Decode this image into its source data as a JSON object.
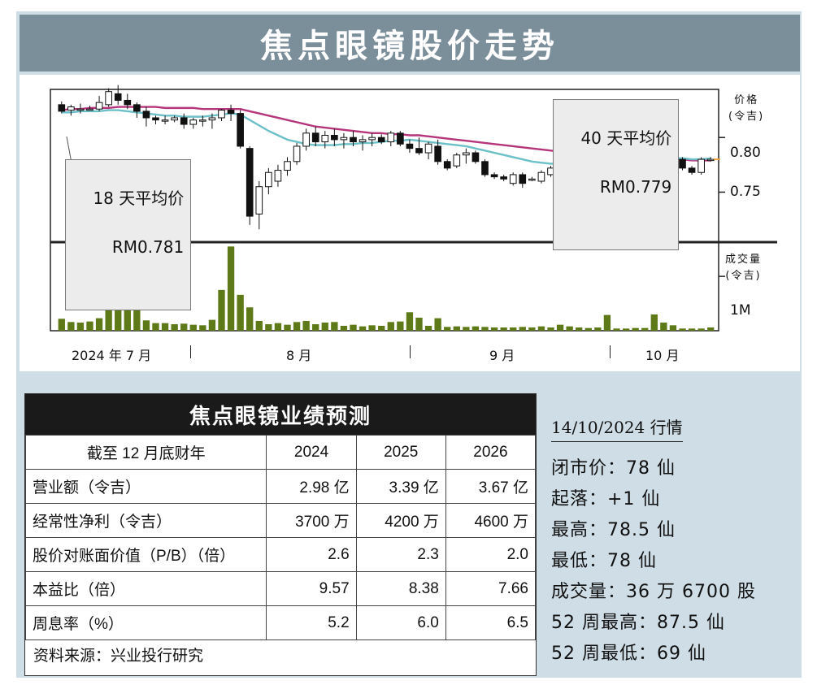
{
  "title": "焦点眼镜股价走势",
  "chart": {
    "annotations": {
      "ma18": {
        "line1": "18 天平均价",
        "line2": "RM0.781"
      },
      "ma40": {
        "line1": "40 天平均价",
        "line2": "RM0.779"
      }
    },
    "price_axis_label": [
      "价格",
      "(令吉)"
    ],
    "volume_axis_label": [
      "成交量",
      "(令吉)"
    ],
    "price_ticks": [
      "0.80",
      "0.75"
    ],
    "volume_ticks": [
      "1M"
    ],
    "months": [
      "2024 年 7 月",
      "8 月",
      "9 月",
      "10 月"
    ]
  },
  "chart_data": {
    "type": "candlestick",
    "price_ylim": [
      0.705,
      0.844
    ],
    "volume_ylim": [
      0,
      1600000
    ],
    "colors": {
      "up": "#ffffff",
      "down": "#111111",
      "ma18": "#6cc0c8",
      "ma40": "#b6357a",
      "volume": "#5e7a18",
      "last": "#f0a040"
    },
    "candles": [
      {
        "o": 0.83,
        "h": 0.833,
        "l": 0.822,
        "c": 0.824,
        "v": 220000
      },
      {
        "o": 0.825,
        "h": 0.83,
        "l": 0.82,
        "c": 0.828,
        "v": 160000
      },
      {
        "o": 0.826,
        "h": 0.831,
        "l": 0.822,
        "c": 0.826,
        "v": 150000
      },
      {
        "o": 0.826,
        "h": 0.829,
        "l": 0.825,
        "c": 0.826,
        "v": 170000
      },
      {
        "o": 0.826,
        "h": 0.838,
        "l": 0.824,
        "c": 0.832,
        "v": 230000
      },
      {
        "o": 0.83,
        "h": 0.845,
        "l": 0.828,
        "c": 0.842,
        "v": 1050000
      },
      {
        "o": 0.84,
        "h": 0.848,
        "l": 0.83,
        "c": 0.834,
        "v": 570000
      },
      {
        "o": 0.834,
        "h": 0.84,
        "l": 0.826,
        "c": 0.83,
        "v": 380000
      },
      {
        "o": 0.83,
        "h": 0.832,
        "l": 0.818,
        "c": 0.824,
        "v": 610000
      },
      {
        "o": 0.824,
        "h": 0.828,
        "l": 0.81,
        "c": 0.818,
        "v": 190000
      },
      {
        "o": 0.818,
        "h": 0.82,
        "l": 0.812,
        "c": 0.816,
        "v": 140000
      },
      {
        "o": 0.816,
        "h": 0.82,
        "l": 0.812,
        "c": 0.816,
        "v": 140000
      },
      {
        "o": 0.816,
        "h": 0.82,
        "l": 0.814,
        "c": 0.818,
        "v": 120000
      },
      {
        "o": 0.818,
        "h": 0.822,
        "l": 0.808,
        "c": 0.812,
        "v": 130000
      },
      {
        "o": 0.812,
        "h": 0.818,
        "l": 0.808,
        "c": 0.816,
        "v": 110000
      },
      {
        "o": 0.816,
        "h": 0.82,
        "l": 0.81,
        "c": 0.816,
        "v": 100000
      },
      {
        "o": 0.816,
        "h": 0.822,
        "l": 0.808,
        "c": 0.818,
        "v": 200000
      },
      {
        "o": 0.818,
        "h": 0.826,
        "l": 0.815,
        "c": 0.825,
        "v": 750000
      },
      {
        "o": 0.825,
        "h": 0.83,
        "l": 0.815,
        "c": 0.822,
        "v": 1550000
      },
      {
        "o": 0.822,
        "h": 0.825,
        "l": 0.79,
        "c": 0.792,
        "v": 660000
      },
      {
        "o": 0.79,
        "h": 0.792,
        "l": 0.72,
        "c": 0.728,
        "v": 430000
      },
      {
        "o": 0.73,
        "h": 0.76,
        "l": 0.716,
        "c": 0.755,
        "v": 180000
      },
      {
        "o": 0.755,
        "h": 0.772,
        "l": 0.748,
        "c": 0.768,
        "v": 120000
      },
      {
        "o": 0.76,
        "h": 0.775,
        "l": 0.755,
        "c": 0.77,
        "v": 140000
      },
      {
        "o": 0.77,
        "h": 0.782,
        "l": 0.765,
        "c": 0.778,
        "v": 110000
      },
      {
        "o": 0.778,
        "h": 0.795,
        "l": 0.775,
        "c": 0.792,
        "v": 160000
      },
      {
        "o": 0.792,
        "h": 0.808,
        "l": 0.788,
        "c": 0.804,
        "v": 180000
      },
      {
        "o": 0.804,
        "h": 0.81,
        "l": 0.792,
        "c": 0.796,
        "v": 120000
      },
      {
        "o": 0.796,
        "h": 0.806,
        "l": 0.79,
        "c": 0.802,
        "v": 150000
      },
      {
        "o": 0.802,
        "h": 0.808,
        "l": 0.792,
        "c": 0.798,
        "v": 160000
      },
      {
        "o": 0.798,
        "h": 0.804,
        "l": 0.79,
        "c": 0.8,
        "v": 90000
      },
      {
        "o": 0.8,
        "h": 0.806,
        "l": 0.792,
        "c": 0.796,
        "v": 110000
      },
      {
        "o": 0.796,
        "h": 0.802,
        "l": 0.788,
        "c": 0.798,
        "v": 80000
      },
      {
        "o": 0.798,
        "h": 0.804,
        "l": 0.792,
        "c": 0.8,
        "v": 100000
      },
      {
        "o": 0.8,
        "h": 0.803,
        "l": 0.794,
        "c": 0.796,
        "v": 90000
      },
      {
        "o": 0.796,
        "h": 0.806,
        "l": 0.792,
        "c": 0.804,
        "v": 160000
      },
      {
        "o": 0.804,
        "h": 0.806,
        "l": 0.792,
        "c": 0.794,
        "v": 170000
      },
      {
        "o": 0.794,
        "h": 0.798,
        "l": 0.786,
        "c": 0.79,
        "v": 340000
      },
      {
        "o": 0.79,
        "h": 0.8,
        "l": 0.784,
        "c": 0.786,
        "v": 240000
      },
      {
        "o": 0.786,
        "h": 0.796,
        "l": 0.78,
        "c": 0.794,
        "v": 90000
      },
      {
        "o": 0.792,
        "h": 0.798,
        "l": 0.775,
        "c": 0.778,
        "v": 230000
      },
      {
        "o": 0.778,
        "h": 0.78,
        "l": 0.77,
        "c": 0.772,
        "v": 70000
      },
      {
        "o": 0.774,
        "h": 0.786,
        "l": 0.772,
        "c": 0.784,
        "v": 80000
      },
      {
        "o": 0.784,
        "h": 0.79,
        "l": 0.776,
        "c": 0.786,
        "v": 70000
      },
      {
        "o": 0.786,
        "h": 0.788,
        "l": 0.776,
        "c": 0.778,
        "v": 80000
      },
      {
        "o": 0.778,
        "h": 0.78,
        "l": 0.764,
        "c": 0.766,
        "v": 70000
      },
      {
        "o": 0.766,
        "h": 0.768,
        "l": 0.762,
        "c": 0.764,
        "v": 60000
      },
      {
        "o": 0.764,
        "h": 0.766,
        "l": 0.76,
        "c": 0.762,
        "v": 60000
      },
      {
        "o": 0.758,
        "h": 0.768,
        "l": 0.756,
        "c": 0.766,
        "v": 60000
      },
      {
        "o": 0.766,
        "h": 0.768,
        "l": 0.754,
        "c": 0.758,
        "v": 70000
      },
      {
        "o": 0.762,
        "h": 0.764,
        "l": 0.76,
        "c": 0.762,
        "v": 60000
      },
      {
        "o": 0.76,
        "h": 0.77,
        "l": 0.758,
        "c": 0.768,
        "v": 80000
      },
      {
        "o": 0.766,
        "h": 0.774,
        "l": 0.764,
        "c": 0.772,
        "v": 60000
      },
      {
        "o": 0.772,
        "h": 0.788,
        "l": 0.77,
        "c": 0.784,
        "v": 110000
      },
      {
        "o": 0.784,
        "h": 0.792,
        "l": 0.778,
        "c": 0.786,
        "v": 80000
      },
      {
        "o": 0.786,
        "h": 0.79,
        "l": 0.78,
        "c": 0.788,
        "v": 60000
      },
      {
        "o": 0.784,
        "h": 0.79,
        "l": 0.782,
        "c": 0.786,
        "v": 50000
      },
      {
        "o": 0.786,
        "h": 0.79,
        "l": 0.78,
        "c": 0.788,
        "v": 60000
      },
      {
        "o": 0.788,
        "h": 0.79,
        "l": 0.782,
        "c": 0.784,
        "v": 290000
      },
      {
        "o": 0.782,
        "h": 0.786,
        "l": 0.78,
        "c": 0.784,
        "v": 40000
      },
      {
        "o": 0.782,
        "h": 0.788,
        "l": 0.78,
        "c": 0.784,
        "v": 40000
      },
      {
        "o": 0.782,
        "h": 0.786,
        "l": 0.778,
        "c": 0.784,
        "v": 50000
      },
      {
        "o": 0.784,
        "h": 0.79,
        "l": 0.778,
        "c": 0.786,
        "v": 50000
      },
      {
        "o": 0.786,
        "h": 0.79,
        "l": 0.78,
        "c": 0.782,
        "v": 300000
      },
      {
        "o": 0.782,
        "h": 0.79,
        "l": 0.778,
        "c": 0.786,
        "v": 150000
      },
      {
        "o": 0.784,
        "h": 0.786,
        "l": 0.776,
        "c": 0.78,
        "v": 100000
      },
      {
        "o": 0.78,
        "h": 0.782,
        "l": 0.77,
        "c": 0.772,
        "v": 40000
      },
      {
        "o": 0.772,
        "h": 0.774,
        "l": 0.766,
        "c": 0.768,
        "v": 40000
      },
      {
        "o": 0.768,
        "h": 0.782,
        "l": 0.766,
        "c": 0.78,
        "v": 40000
      },
      {
        "o": 0.78,
        "h": 0.782,
        "l": 0.778,
        "c": 0.78,
        "v": 60000
      }
    ],
    "ma18": [
      0.823,
      0.823,
      0.824,
      0.824,
      0.824,
      0.825,
      0.825,
      0.824,
      0.823,
      0.822,
      0.821,
      0.82,
      0.82,
      0.819,
      0.819,
      0.819,
      0.82,
      0.821,
      0.822,
      0.821,
      0.816,
      0.811,
      0.806,
      0.802,
      0.798,
      0.796,
      0.794,
      0.793,
      0.793,
      0.793,
      0.794,
      0.794,
      0.795,
      0.795,
      0.796,
      0.797,
      0.797,
      0.798,
      0.797,
      0.796,
      0.795,
      0.794,
      0.793,
      0.792,
      0.79,
      0.788,
      0.786,
      0.784,
      0.782,
      0.78,
      0.778,
      0.777,
      0.776,
      0.776,
      0.776,
      0.776,
      0.777,
      0.777,
      0.778,
      0.778,
      0.778,
      0.779,
      0.779,
      0.78,
      0.781,
      0.781,
      0.781,
      0.78,
      0.78,
      0.781
    ],
    "ma40": [
      0.825,
      0.826,
      0.826,
      0.827,
      0.827,
      0.827,
      0.828,
      0.828,
      0.828,
      0.828,
      0.828,
      0.827,
      0.827,
      0.827,
      0.827,
      0.826,
      0.826,
      0.826,
      0.826,
      0.826,
      0.824,
      0.822,
      0.82,
      0.818,
      0.816,
      0.814,
      0.812,
      0.81,
      0.809,
      0.808,
      0.807,
      0.806,
      0.805,
      0.804,
      0.804,
      0.803,
      0.803,
      0.802,
      0.802,
      0.801,
      0.8,
      0.799,
      0.798,
      0.797,
      0.796,
      0.795,
      0.794,
      0.793,
      0.792,
      0.791,
      0.79,
      0.789,
      0.788,
      0.787,
      0.786,
      0.785,
      0.785,
      0.784,
      0.784,
      0.783,
      0.783,
      0.782,
      0.782,
      0.781,
      0.781,
      0.78,
      0.78,
      0.779,
      0.779,
      0.779
    ]
  },
  "forecast": {
    "title": "焦点眼镜业绩预测",
    "header": [
      "截至 12 月底财年",
      "2024",
      "2025",
      "2026"
    ],
    "rows": [
      [
        "营业额（令吉）",
        "2.98 亿",
        "3.39 亿",
        "3.67 亿"
      ],
      [
        "经常性净利（令吉）",
        "3700 万",
        "4200 万",
        "4600 万"
      ],
      [
        "股价对账面价值（P/B）（倍）",
        "2.6",
        "2.3",
        "2.0"
      ],
      [
        "本益比（倍）",
        "9.57",
        "8.38",
        "7.66"
      ],
      [
        "周息率（%）",
        "5.2",
        "6.0",
        "6.5"
      ]
    ],
    "source": "资料来源：兴业投行研究"
  },
  "quote": {
    "date": "14/10/2024 行情",
    "items": [
      "闭市价：78 仙",
      "起落：+1 仙",
      "最高：78.5 仙",
      "最低：78 仙",
      "成交量：36 万 6700 股",
      "52 周最高：87.5 仙",
      "52 周最低：69 仙"
    ]
  }
}
